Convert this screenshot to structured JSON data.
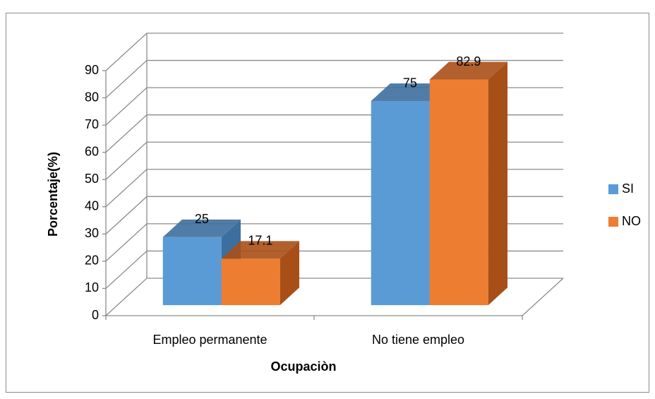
{
  "chart_data": {
    "type": "bar3d",
    "x_label": "Ocupaciòn",
    "y_label": "Porcentaje(%)",
    "categories": [
      "Empleo permanente",
      "No tiene empleo"
    ],
    "series": [
      {
        "name": "SI",
        "color": "#5b9bd5",
        "side": "#3d6f9e",
        "values": [
          25,
          75
        ]
      },
      {
        "name": "NO",
        "color": "#ed7d31",
        "side": "#a84f17",
        "values": [
          17.1,
          82.9
        ]
      }
    ],
    "ylim": [
      0,
      90
    ],
    "yticks": [
      0,
      10,
      20,
      30,
      40,
      50,
      60,
      70,
      80,
      90
    ],
    "grid": true,
    "legend": "right"
  }
}
